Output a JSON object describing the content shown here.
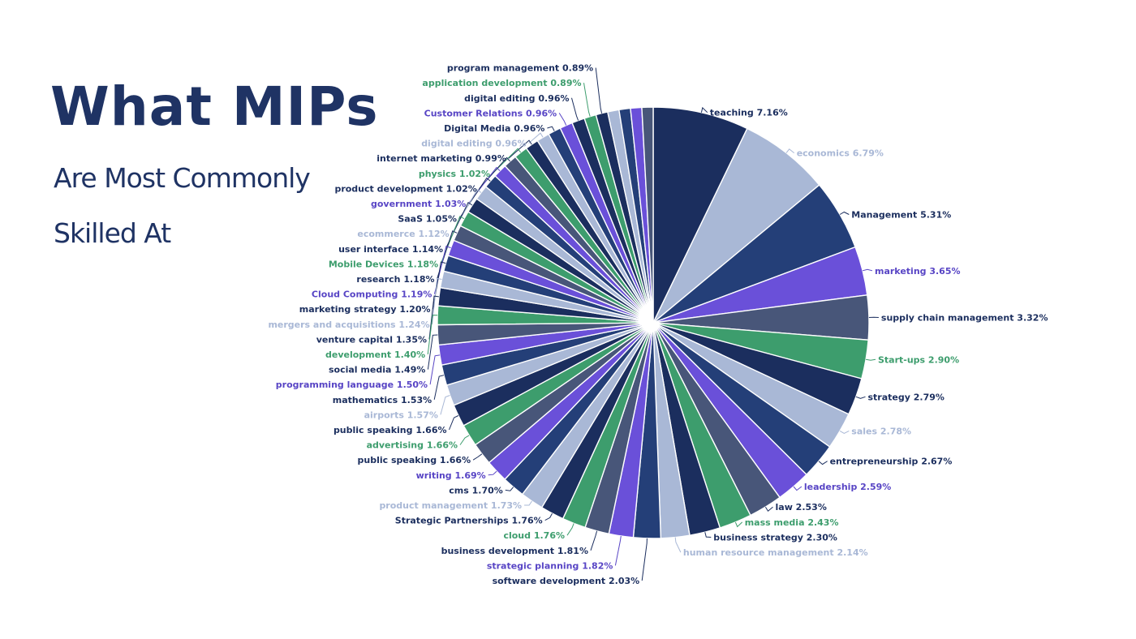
{
  "title": "What MIPs",
  "subtitle_line1": "Are Most Commonly",
  "subtitle_line2": "Skilled At",
  "palette": {
    "navy": "#1b2e5e",
    "light": "#a9b8d6",
    "blue": "#243f78",
    "purple": "#6a50d9",
    "slate": "#485679",
    "green": "#3d9d6d"
  },
  "label_colors": {
    "navy": "#1b2e5e",
    "light": "#a9b8d6",
    "blue": "#1b2e5e",
    "purple": "#5845c5",
    "slate": "#1b2e5e",
    "green": "#3d9d6d"
  },
  "chart_data": {
    "type": "pie",
    "slices": [
      {
        "label": "teaching",
        "value": 7.16,
        "display": "7.16%",
        "color": "navy"
      },
      {
        "label": "economics",
        "value": 6.79,
        "display": "6.79%",
        "color": "light"
      },
      {
        "label": "Management",
        "value": 5.31,
        "display": "5.31%",
        "color": "blue"
      },
      {
        "label": "marketing",
        "value": 3.65,
        "display": "3.65%",
        "color": "purple"
      },
      {
        "label": "supply chain management",
        "value": 3.32,
        "display": "3.32%",
        "color": "slate"
      },
      {
        "label": "Start-ups",
        "value": 2.9,
        "display": "2.90%",
        "color": "green"
      },
      {
        "label": "strategy",
        "value": 2.79,
        "display": "2.79%",
        "color": "navy"
      },
      {
        "label": "sales",
        "value": 2.78,
        "display": "2.78%",
        "color": "light"
      },
      {
        "label": "entrepreneurship",
        "value": 2.67,
        "display": "2.67%",
        "color": "blue"
      },
      {
        "label": "leadership",
        "value": 2.59,
        "display": "2.59%",
        "color": "purple"
      },
      {
        "label": "law",
        "value": 2.53,
        "display": "2.53%",
        "color": "slate"
      },
      {
        "label": "mass media",
        "value": 2.43,
        "display": "2.43%",
        "color": "green"
      },
      {
        "label": "business strategy",
        "value": 2.3,
        "display": "2.30%",
        "color": "navy"
      },
      {
        "label": "human resource management",
        "value": 2.14,
        "display": "2.14%",
        "color": "light"
      },
      {
        "label": "software development",
        "value": 2.03,
        "display": "2.03%",
        "color": "blue"
      },
      {
        "label": "strategic planning",
        "value": 1.82,
        "display": "1.82%",
        "color": "purple"
      },
      {
        "label": "business development",
        "value": 1.81,
        "display": "1.81%",
        "color": "slate"
      },
      {
        "label": "cloud",
        "value": 1.76,
        "display": "1.76%",
        "color": "green"
      },
      {
        "label": "Strategic Partnerships",
        "value": 1.76,
        "display": "1.76%",
        "color": "navy"
      },
      {
        "label": "product management",
        "value": 1.73,
        "display": "1.73%",
        "color": "light"
      },
      {
        "label": "cms",
        "value": 1.7,
        "display": "1.70%",
        "color": "blue"
      },
      {
        "label": "writing",
        "value": 1.69,
        "display": "1.69%",
        "color": "purple"
      },
      {
        "label": "public speaking",
        "value": 1.66,
        "display": "1.66%",
        "color": "slate"
      },
      {
        "label": "advertising",
        "value": 1.66,
        "display": "1.66%",
        "color": "green"
      },
      {
        "label": "public speaking",
        "value": 1.66,
        "display": "1.66%",
        "color": "navy"
      },
      {
        "label": "airports",
        "value": 1.57,
        "display": "1.57%",
        "color": "light"
      },
      {
        "label": "mathematics",
        "value": 1.53,
        "display": "1.53%",
        "color": "blue"
      },
      {
        "label": "programming language",
        "value": 1.5,
        "display": "1.50%",
        "color": "purple"
      },
      {
        "label": "social media",
        "value": 1.49,
        "display": "1.49%",
        "color": "slate"
      },
      {
        "label": "development",
        "value": 1.4,
        "display": "1.40%",
        "color": "green"
      },
      {
        "label": "venture capital",
        "value": 1.35,
        "display": "1.35%",
        "color": "navy"
      },
      {
        "label": "mergers and acquisitions",
        "value": 1.24,
        "display": "1.24%",
        "color": "light"
      },
      {
        "label": "marketing strategy",
        "value": 1.2,
        "display": "1.20%",
        "color": "blue"
      },
      {
        "label": "Cloud Computing",
        "value": 1.19,
        "display": "1.19%",
        "color": "purple"
      },
      {
        "label": "research",
        "value": 1.18,
        "display": "1.18%",
        "color": "slate"
      },
      {
        "label": "Mobile Devices",
        "value": 1.18,
        "display": "1.18%",
        "color": "green"
      },
      {
        "label": "user interface",
        "value": 1.14,
        "display": "1.14%",
        "color": "navy"
      },
      {
        "label": "ecommerce",
        "value": 1.12,
        "display": "1.12%",
        "color": "light"
      },
      {
        "label": "SaaS",
        "value": 1.05,
        "display": "1.05%",
        "color": "blue"
      },
      {
        "label": "government",
        "value": 1.03,
        "display": "1.03%",
        "color": "purple"
      },
      {
        "label": "product development",
        "value": 1.02,
        "display": "1.02%",
        "color": "slate"
      },
      {
        "label": "physics",
        "value": 1.02,
        "display": "1.02%",
        "color": "green"
      },
      {
        "label": "internet marketing",
        "value": 0.99,
        "display": "0.99%",
        "color": "navy"
      },
      {
        "label": "digital editing",
        "value": 0.96,
        "display": "0.96%",
        "color": "light"
      },
      {
        "label": "Digital Media",
        "value": 0.96,
        "display": "0.96%",
        "color": "blue"
      },
      {
        "label": "Customer Relations",
        "value": 0.96,
        "display": "0.96%",
        "color": "purple"
      },
      {
        "label": "digital editing",
        "value": 0.96,
        "display": "0.96%",
        "color": "navy"
      },
      {
        "label": "application development",
        "value": 0.89,
        "display": "0.89%",
        "color": "green"
      },
      {
        "label": "program management",
        "value": 0.89,
        "display": "0.89%",
        "color": "navy"
      },
      {
        "label": "",
        "value": 0.85,
        "display": "",
        "color": "light"
      },
      {
        "label": "",
        "value": 0.85,
        "display": "",
        "color": "blue"
      },
      {
        "label": "",
        "value": 0.84,
        "display": "",
        "color": "purple"
      },
      {
        "label": "",
        "value": 0.84,
        "display": "",
        "color": "slate"
      }
    ]
  }
}
